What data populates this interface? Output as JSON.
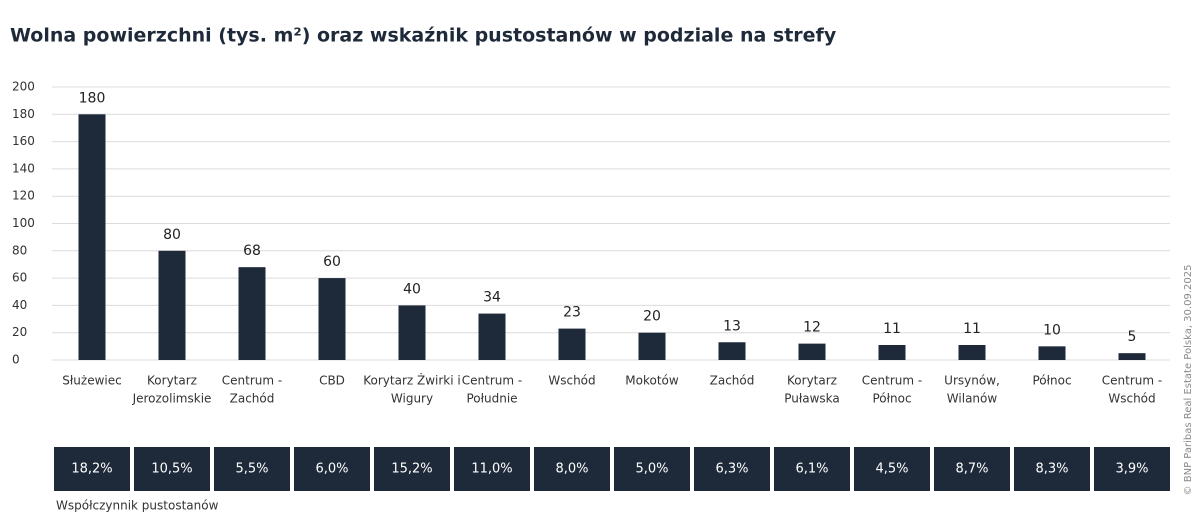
{
  "chart_data": {
    "type": "bar",
    "title": "Wolna powierzchni (tys. m²) oraz wskaźnik pustostanów w podziale na strefy",
    "categories": [
      [
        "Służewiec"
      ],
      [
        "Korytarz",
        "Jerozolimskie"
      ],
      [
        "Centrum -",
        "Zachód"
      ],
      [
        "CBD"
      ],
      [
        "Korytarz Żwirki i",
        "Wigury"
      ],
      [
        "Centrum -",
        "Południe"
      ],
      [
        "Wschód"
      ],
      [
        "Mokotów"
      ],
      [
        "Zachód"
      ],
      [
        "Korytarz",
        "Puławska"
      ],
      [
        "Centrum -",
        "Północ"
      ],
      [
        "Ursynów,",
        "Wilanów"
      ],
      [
        "Północ"
      ],
      [
        "Centrum -",
        "Wschód"
      ]
    ],
    "values": [
      180,
      80,
      68,
      60,
      40,
      34,
      23,
      20,
      13,
      12,
      11,
      11,
      10,
      5
    ],
    "value_labels": [
      "180",
      "80",
      "68",
      "60",
      "40",
      "34",
      "23",
      "20",
      "13",
      "12",
      "11",
      "11",
      "10",
      "5"
    ],
    "color": "#1e2a3a",
    "ylim": [
      0,
      200
    ],
    "yticks": [
      0,
      20,
      40,
      60,
      80,
      100,
      120,
      140,
      160,
      180,
      200
    ],
    "grid": true,
    "vacancy": {
      "label": "Współczynnik pustostanów",
      "values": [
        18.2,
        10.5,
        5.5,
        6.0,
        15.2,
        11.0,
        8.0,
        5.0,
        6.3,
        6.1,
        4.5,
        8.7,
        8.3,
        3.9
      ],
      "value_labels": [
        "18,2%",
        "10,5%",
        "5,5%",
        "6,0%",
        "15,2%",
        "11,0%",
        "8,0%",
        "5,0%",
        "6,3%",
        "6,1%",
        "4,5%",
        "8,7%",
        "8,3%",
        "3,9%"
      ]
    },
    "source": "© BNP Paribas Real Estate Polska, 30.09.2025"
  }
}
